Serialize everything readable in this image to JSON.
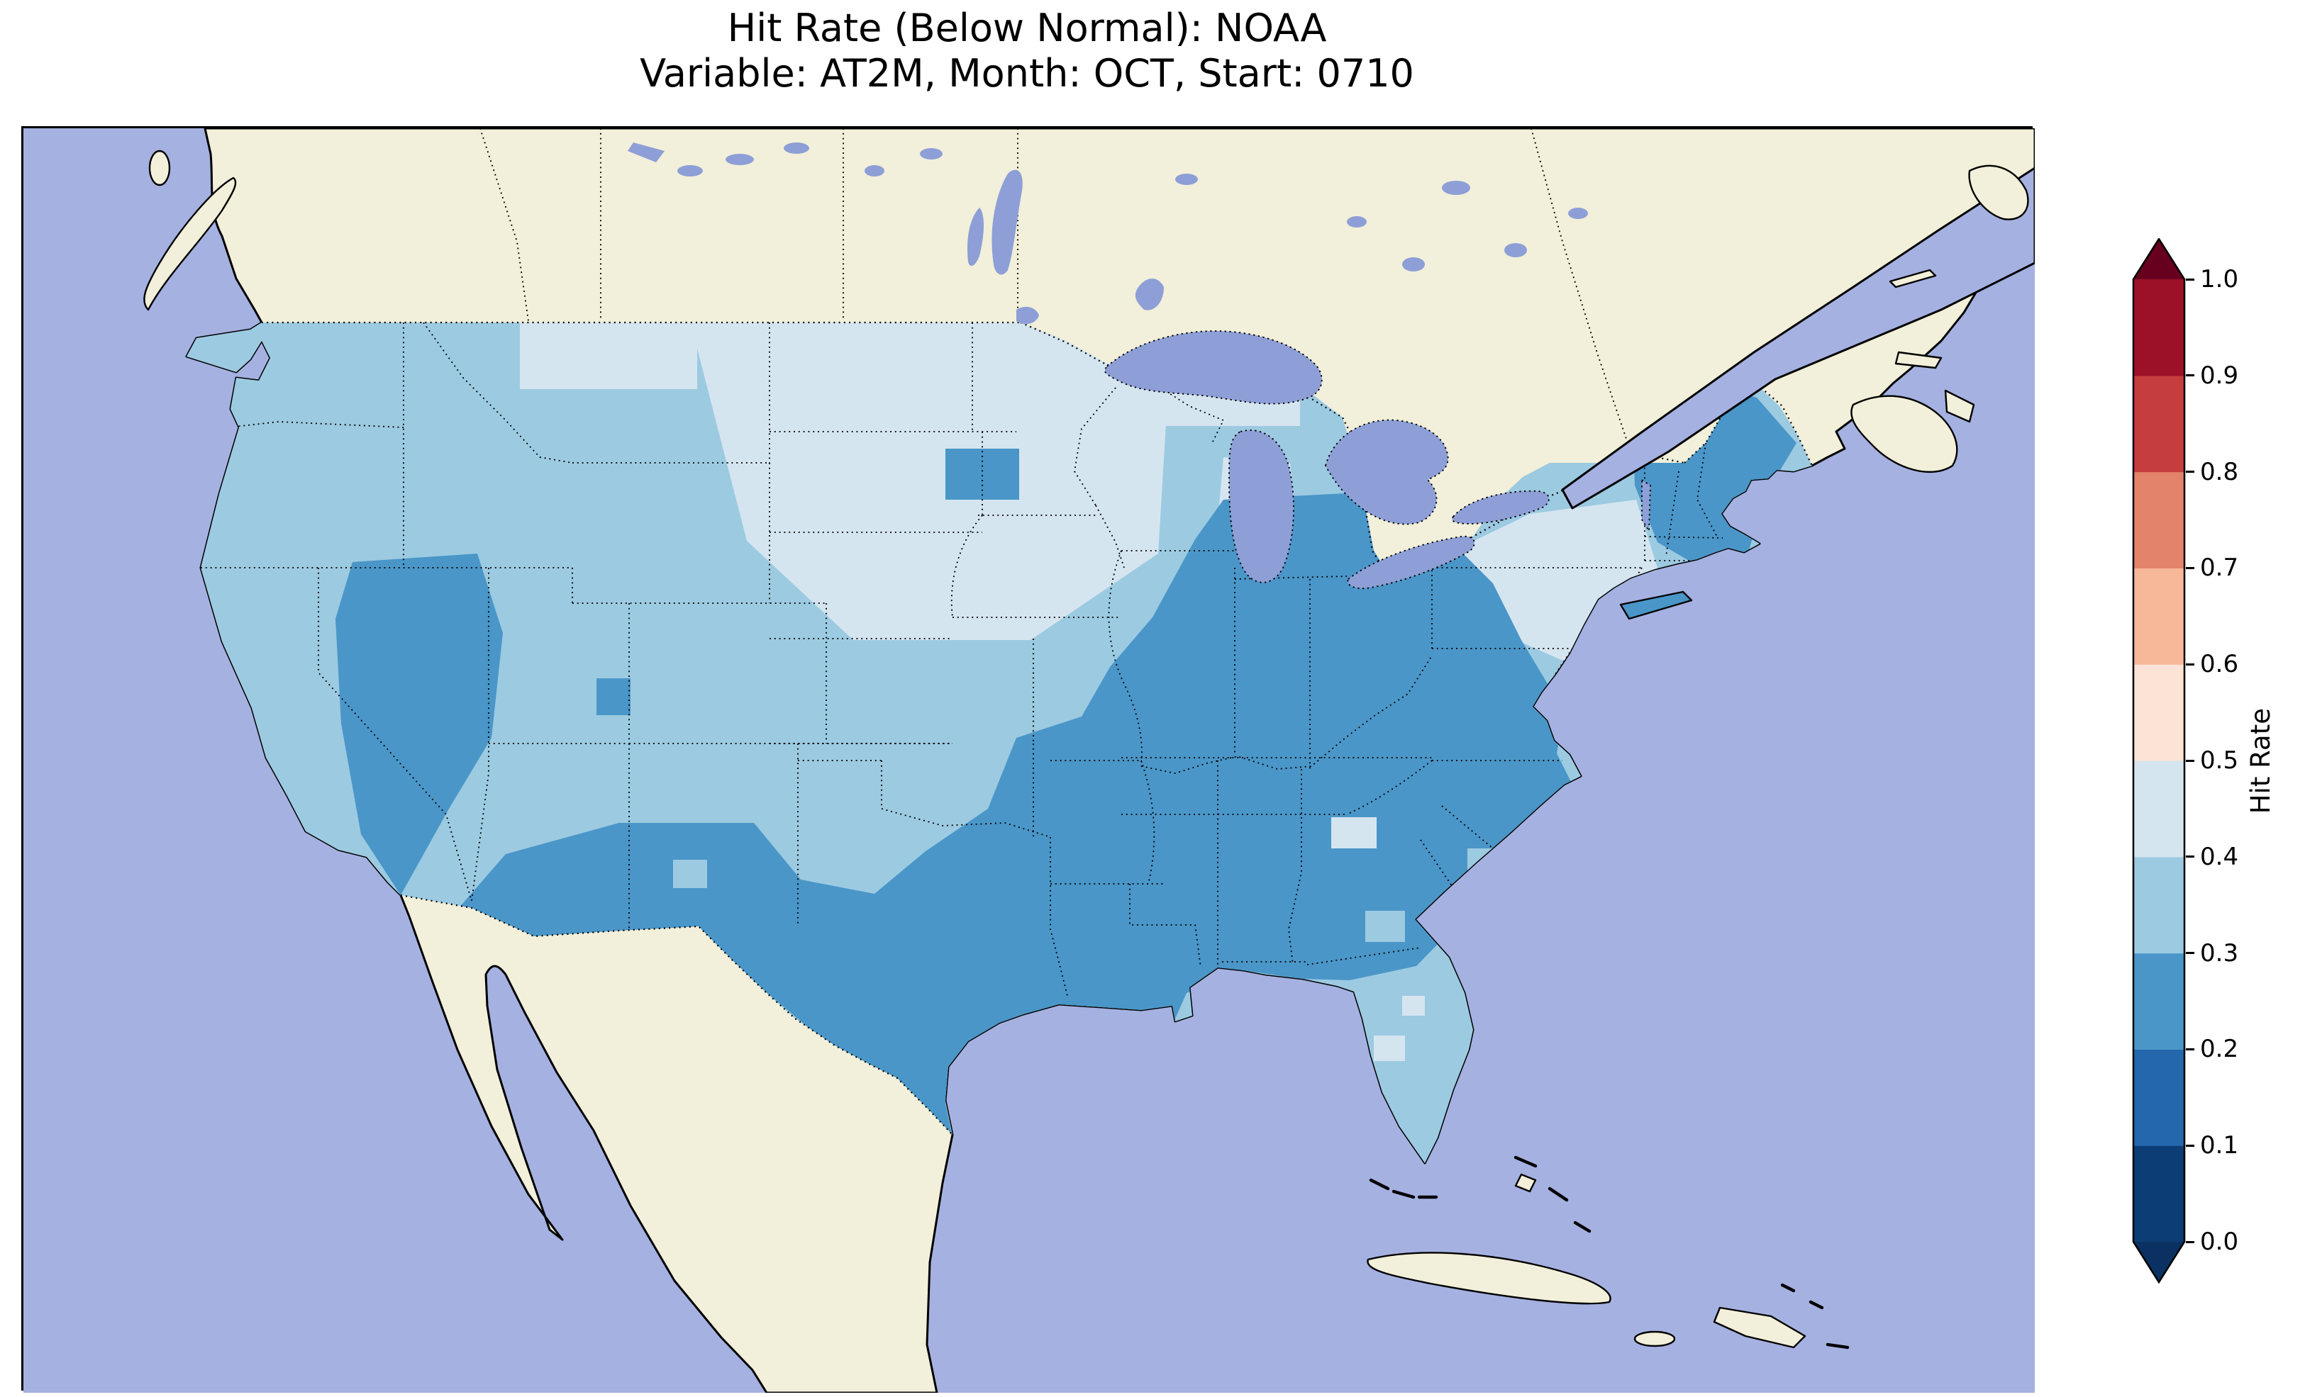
{
  "figure": {
    "title_line1": "Hit Rate (Below Normal): NOAA",
    "title_line2": "Variable: AT2M, Month: OCT, Start: 0710"
  },
  "colorbar": {
    "label": "Hit Rate",
    "extend": "both",
    "under_color": "#0a3161",
    "over_color": "#67001f",
    "bins": [
      {
        "range": "0.0-0.1",
        "color": "#0d3d75"
      },
      {
        "range": "0.1-0.2",
        "color": "#2467ad"
      },
      {
        "range": "0.2-0.3",
        "color": "#4a96c8"
      },
      {
        "range": "0.3-0.4",
        "color": "#9ccae1"
      },
      {
        "range": "0.4-0.5",
        "color": "#d5e5f0"
      },
      {
        "range": "0.5-0.6",
        "color": "#fbe4d6"
      },
      {
        "range": "0.6-0.7",
        "color": "#f7b799"
      },
      {
        "range": "0.7-0.8",
        "color": "#e4836b"
      },
      {
        "range": "0.8-0.9",
        "color": "#c53e3d"
      },
      {
        "range": "0.9-1.0",
        "color": "#9c1127"
      }
    ],
    "ticks": [
      {
        "value": 0.0,
        "label": "0.0"
      },
      {
        "value": 0.1,
        "label": "0.1"
      },
      {
        "value": 0.2,
        "label": "0.2"
      },
      {
        "value": 0.3,
        "label": "0.3"
      },
      {
        "value": 0.4,
        "label": "0.4"
      },
      {
        "value": 0.5,
        "label": "0.5"
      },
      {
        "value": 0.6,
        "label": "0.6"
      },
      {
        "value": 0.7,
        "label": "0.7"
      },
      {
        "value": 0.8,
        "label": "0.8"
      },
      {
        "value": 0.9,
        "label": "0.9"
      },
      {
        "value": 1.0,
        "label": "1.0"
      }
    ]
  },
  "map": {
    "fills": {
      "ocean": "#a5b1e1",
      "land": "#f2efda",
      "lake": "#8d9fd6",
      "hit_02_03": "#4a96c8",
      "hit_03_04": "#9ccae1",
      "hit_04_05": "#d5e5f0"
    }
  },
  "chart_data": {
    "type": "heatmap",
    "title": "Hit Rate (Below Normal): NOAA",
    "subtitle": "Variable: AT2M, Month: OCT, Start: 0710",
    "geography": "Contiguous United States gridded hit-rate field with surrounding Canada, Mexico, Pacific, Gulf of Mexico and Atlantic",
    "colorbar": {
      "label": "Hit Rate",
      "range": [
        0.0,
        1.0
      ],
      "tick_step": 0.1,
      "extend": "both",
      "colormap": "RdBu reversed (blue = low, red = high)"
    },
    "value_note": "All CONUS grid cells fall in the 0.2-0.5 range (blues); no cells above 0.5 (reds) appear on the map",
    "regions": [
      {
        "region": "pacific-northwest-washington-oregon",
        "hit_rate_bin": "0.3-0.4"
      },
      {
        "region": "northern-plains-montana-dakotas-minnesota-wisconsin",
        "hit_rate_bin": "0.4-0.5"
      },
      {
        "region": "nevada-eastern-california",
        "hit_rate_bin": "0.2-0.3"
      },
      {
        "region": "southern-california-coast",
        "hit_rate_bin": "0.3-0.4"
      },
      {
        "region": "utah-colorado-wyoming",
        "hit_rate_bin": "0.3-0.4"
      },
      {
        "region": "southern-arizona-new-mexico",
        "hit_rate_bin": "0.2-0.3"
      },
      {
        "region": "texas-south-central-east",
        "hit_rate_bin": "0.2-0.3"
      },
      {
        "region": "texas-panhandle-oklahoma-kansas",
        "hit_rate_bin": "0.3-0.4"
      },
      {
        "region": "midwest-iowa-illinois-north",
        "hit_rate_bin": "0.3-0.5"
      },
      {
        "region": "ohio-valley-indiana-ohio-kentucky-tennessee",
        "hit_rate_bin": "0.2-0.3"
      },
      {
        "region": "southeast-mississippi-alabama-georgia-carolinas-virginia",
        "hit_rate_bin": "0.2-0.3"
      },
      {
        "region": "mid-atlantic-pennsylvania-new-york",
        "hit_rate_bin": "0.4-0.5"
      },
      {
        "region": "new-england-maine-vermont-new-hampshire",
        "hit_rate_bin": "0.2-0.3"
      },
      {
        "region": "florida-peninsula",
        "hit_rate_bin": "0.3-0.4"
      }
    ]
  }
}
